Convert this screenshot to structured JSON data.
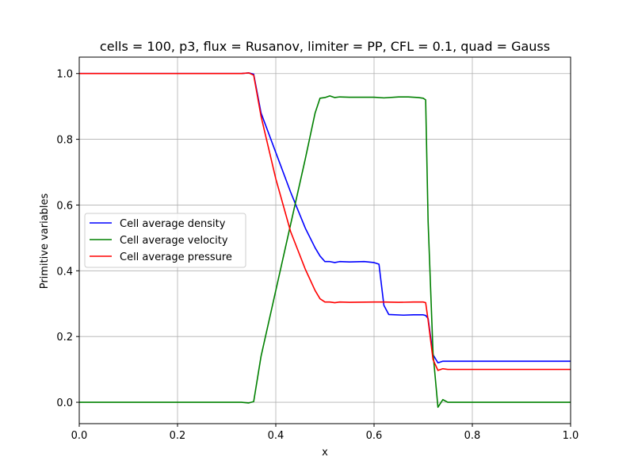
{
  "chart_data": {
    "type": "line",
    "title": "cells = 100, p3, flux = Rusanov, limiter = PP, CFL = 0.1, quad = Gauss",
    "xlabel": "x",
    "ylabel": "Primitive variables",
    "xlim": [
      0.0,
      1.0
    ],
    "ylim": [
      -0.065,
      1.05
    ],
    "xticks": [
      0.0,
      0.2,
      0.4,
      0.6,
      0.8,
      1.0
    ],
    "xtick_labels": [
      "0.0",
      "0.2",
      "0.4",
      "0.6",
      "0.8",
      "1.0"
    ],
    "yticks": [
      0.0,
      0.2,
      0.4,
      0.6,
      0.8,
      1.0
    ],
    "ytick_labels": [
      "0.0",
      "0.2",
      "0.4",
      "0.6",
      "0.8",
      "1.0"
    ],
    "grid": true,
    "legend_position": "center-left",
    "series": [
      {
        "name": "Cell average density",
        "color": "#0000ff",
        "x": [
          0.0,
          0.1,
          0.2,
          0.3,
          0.33,
          0.345,
          0.355,
          0.37,
          0.4,
          0.43,
          0.46,
          0.48,
          0.49,
          0.5,
          0.51,
          0.52,
          0.53,
          0.55,
          0.58,
          0.6,
          0.61,
          0.62,
          0.63,
          0.66,
          0.68,
          0.7,
          0.705,
          0.71,
          0.72,
          0.73,
          0.74,
          0.75,
          0.8,
          0.9,
          1.0
        ],
        "y": [
          1.0,
          1.0,
          1.0,
          1.0,
          1.0,
          1.002,
          0.998,
          0.88,
          0.76,
          0.64,
          0.53,
          0.47,
          0.445,
          0.428,
          0.428,
          0.425,
          0.428,
          0.427,
          0.428,
          0.425,
          0.42,
          0.295,
          0.267,
          0.265,
          0.266,
          0.266,
          0.264,
          0.255,
          0.145,
          0.12,
          0.125,
          0.125,
          0.125,
          0.125,
          0.125
        ]
      },
      {
        "name": "Cell average velocity",
        "color": "#008000",
        "x": [
          0.0,
          0.1,
          0.2,
          0.3,
          0.33,
          0.345,
          0.355,
          0.37,
          0.4,
          0.43,
          0.46,
          0.48,
          0.49,
          0.5,
          0.51,
          0.52,
          0.53,
          0.55,
          0.6,
          0.62,
          0.65,
          0.67,
          0.69,
          0.7,
          0.705,
          0.71,
          0.72,
          0.73,
          0.74,
          0.75,
          0.8,
          0.9,
          1.0
        ],
        "y": [
          0.0,
          0.0,
          0.0,
          0.0,
          0.0,
          -0.002,
          0.002,
          0.14,
          0.34,
          0.54,
          0.74,
          0.88,
          0.925,
          0.927,
          0.932,
          0.927,
          0.929,
          0.928,
          0.928,
          0.926,
          0.929,
          0.929,
          0.927,
          0.925,
          0.92,
          0.55,
          0.15,
          -0.015,
          0.008,
          0.0,
          0.0,
          0.0,
          0.0
        ]
      },
      {
        "name": "Cell average pressure",
        "color": "#ff0000",
        "x": [
          0.0,
          0.1,
          0.2,
          0.3,
          0.33,
          0.345,
          0.355,
          0.37,
          0.4,
          0.43,
          0.46,
          0.48,
          0.49,
          0.5,
          0.51,
          0.52,
          0.53,
          0.55,
          0.6,
          0.62,
          0.65,
          0.68,
          0.7,
          0.705,
          0.71,
          0.72,
          0.73,
          0.74,
          0.75,
          0.8,
          0.9,
          1.0
        ],
        "y": [
          1.0,
          1.0,
          1.0,
          1.0,
          1.0,
          1.002,
          0.995,
          0.87,
          0.68,
          0.52,
          0.405,
          0.34,
          0.315,
          0.305,
          0.305,
          0.303,
          0.305,
          0.304,
          0.305,
          0.305,
          0.304,
          0.305,
          0.305,
          0.303,
          0.25,
          0.13,
          0.097,
          0.102,
          0.1,
          0.1,
          0.1,
          0.1
        ]
      }
    ]
  }
}
